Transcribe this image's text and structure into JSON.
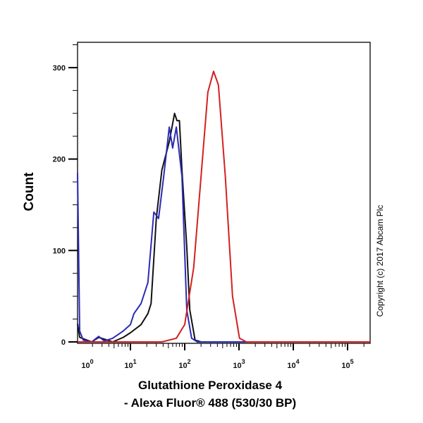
{
  "chart_data": {
    "type": "line",
    "title": "",
    "xlabel_line1": "Glutathione Peroxidase 4",
    "xlabel_line2": "- Alexa Fluor® 488 (530/30 BP)",
    "ylabel": "Count",
    "x_scale": "log",
    "xlim": [
      1,
      260000
    ],
    "ylim": [
      0,
      330
    ],
    "x_ticks": [
      {
        "value": 1,
        "base": "10",
        "exp": "0"
      },
      {
        "value": 10,
        "base": "10",
        "exp": "1"
      },
      {
        "value": 100,
        "base": "10",
        "exp": "2"
      },
      {
        "value": 1000,
        "base": "10",
        "exp": "3"
      },
      {
        "value": 10000,
        "base": "10",
        "exp": "4"
      },
      {
        "value": 100000,
        "base": "10",
        "exp": "5"
      }
    ],
    "y_ticks": [
      {
        "value": 0,
        "label": "0"
      },
      {
        "value": 100,
        "label": "100"
      },
      {
        "value": 200,
        "label": "200"
      },
      {
        "value": 300,
        "label": "300"
      }
    ],
    "grid": false,
    "series": [
      {
        "color": "#111111",
        "points": [
          [
            1.06,
            20
          ],
          [
            1.16,
            5
          ],
          [
            1.93,
            0
          ],
          [
            2.6,
            5
          ],
          [
            4.7,
            0
          ],
          [
            7.4,
            5
          ],
          [
            10,
            10
          ],
          [
            15.7,
            19
          ],
          [
            21,
            31
          ],
          [
            24,
            42
          ],
          [
            30,
            135
          ],
          [
            38,
            188
          ],
          [
            52,
            219
          ],
          [
            65,
            250
          ],
          [
            72,
            242
          ],
          [
            80,
            242
          ],
          [
            89,
            188
          ],
          [
            109,
            104
          ],
          [
            124,
            35
          ],
          [
            155,
            2
          ],
          [
            200,
            0
          ],
          [
            260000,
            0
          ]
        ]
      },
      {
        "color": "#2a2ab8",
        "points": [
          [
            1.06,
            185
          ],
          [
            1.16,
            12
          ],
          [
            1.35,
            2
          ],
          [
            1.93,
            0
          ],
          [
            2.6,
            6
          ],
          [
            3.3,
            1
          ],
          [
            4.7,
            4
          ],
          [
            7.4,
            12
          ],
          [
            10,
            19
          ],
          [
            11.6,
            31
          ],
          [
            15.7,
            42
          ],
          [
            21,
            65
          ],
          [
            27,
            142
          ],
          [
            33,
            135
          ],
          [
            41,
            181
          ],
          [
            52,
            235
          ],
          [
            60,
            212
          ],
          [
            70,
            235
          ],
          [
            89,
            181
          ],
          [
            109,
            35
          ],
          [
            134,
            4
          ],
          [
            171,
            0
          ],
          [
            260000,
            0
          ]
        ]
      },
      {
        "color": "#d42020",
        "points": [
          [
            1,
            0
          ],
          [
            38,
            0
          ],
          [
            70,
            4
          ],
          [
            100,
            19
          ],
          [
            146,
            81
          ],
          [
            200,
            181
          ],
          [
            267,
            273
          ],
          [
            340,
            296
          ],
          [
            418,
            281
          ],
          [
            560,
            181
          ],
          [
            760,
            50
          ],
          [
            1020,
            4
          ],
          [
            1370,
            0
          ],
          [
            260000,
            0
          ]
        ]
      }
    ]
  },
  "copyright": "Copyright (c) 2017 Abcam Plc"
}
